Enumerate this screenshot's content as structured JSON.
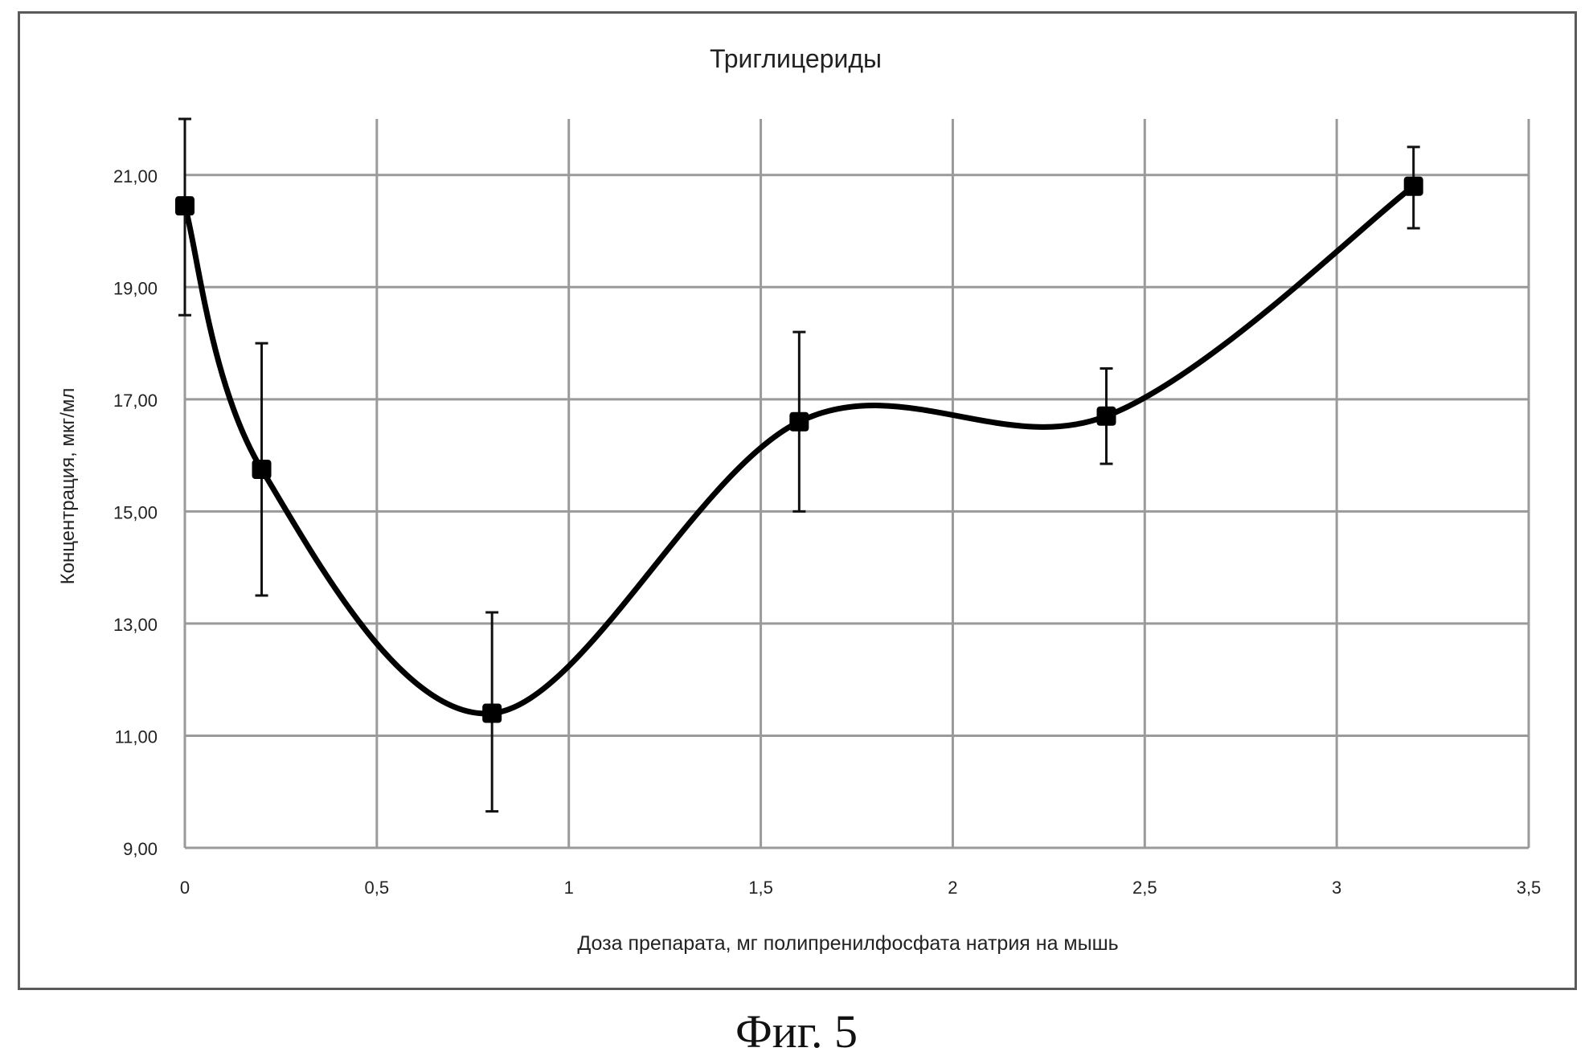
{
  "figure_caption": "Фиг. 5",
  "chart_data": {
    "type": "line",
    "title": "Триглицериды",
    "xlabel": "Доза препарата, мг полипренилфосфата натрия на мышь",
    "ylabel": "Концентрация, мкг/мл",
    "xlim": [
      0,
      3.5
    ],
    "ylim": [
      9,
      22
    ],
    "xticks": [
      0,
      0.5,
      1,
      1.5,
      2,
      2.5,
      3,
      3.5
    ],
    "xtick_labels": [
      "0",
      "0,5",
      "1",
      "1,5",
      "2",
      "2,5",
      "3",
      "3,5"
    ],
    "yticks": [
      9,
      11,
      13,
      15,
      17,
      19,
      21
    ],
    "ytick_labels": [
      "9,00",
      "11,00",
      "13,00",
      "15,00",
      "17,00",
      "19,00",
      "21,00"
    ],
    "grid": true,
    "smooth": true,
    "series": [
      {
        "x": [
          0,
          0.2,
          0.8,
          1.6,
          2.4,
          3.2
        ],
        "y": [
          20.45,
          15.75,
          11.4,
          16.6,
          16.7,
          20.8
        ],
        "err_low": [
          18.5,
          13.5,
          9.65,
          15.0,
          15.85,
          20.05
        ],
        "err_high": [
          22.0,
          18.0,
          13.2,
          18.2,
          17.55,
          21.5
        ]
      }
    ],
    "colors": {
      "line": "#000000",
      "grid": "#9a9a9a",
      "text": "#222222"
    }
  }
}
